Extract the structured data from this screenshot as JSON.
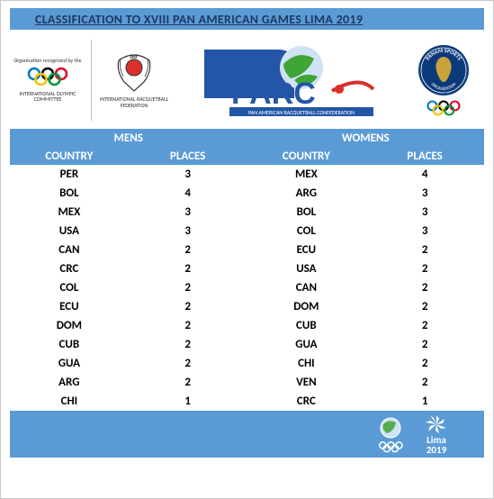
{
  "title": "CLASSIFICATION TO XVIII PAN AMERICAN GAMES LIMA 2019",
  "colors": {
    "header_bg": "#5b9bd5",
    "title_text": "#1f3864",
    "white": "#ffffff",
    "text": "#000000",
    "border": "#c8c8c8",
    "panam_blue": "#0b3a7a",
    "panam_gold": "#c9a33a",
    "parc_blue": "#2356a6",
    "parc_red": "#d9302c",
    "lima_teal": "#7fcecb"
  },
  "logos": {
    "ioc": {
      "top": "Organisation recognized by the",
      "name": "INTERNATIONAL OLYMPIC COMMITTEE"
    },
    "irf": {
      "top": "IRF",
      "name": "INTERNATIONAL RACQUETBALL FEDERATION"
    },
    "parc": {
      "main": "PARC",
      "sub": "PAN AMERICAN RACQUETBALL CONFEDERATION"
    },
    "panam": {
      "top": "PANAM SPORTS",
      "sub": "ORGANIZATION"
    }
  },
  "table": {
    "genders": [
      "MENS",
      "WOMENS"
    ],
    "headers": [
      "COUNTRY",
      "PLACES",
      "COUNTRY",
      "PLACES"
    ],
    "rows": [
      {
        "mc": "PER",
        "mp": "3",
        "wc": "MEX",
        "wp": "4"
      },
      {
        "mc": "BOL",
        "mp": "4",
        "wc": "ARG",
        "wp": "3"
      },
      {
        "mc": "MEX",
        "mp": "3",
        "wc": "BOL",
        "wp": "3"
      },
      {
        "mc": "USA",
        "mp": "3",
        "wc": "COL",
        "wp": "3"
      },
      {
        "mc": "CAN",
        "mp": "2",
        "wc": "ECU",
        "wp": "2"
      },
      {
        "mc": "CRC",
        "mp": "2",
        "wc": "USA",
        "wp": "2"
      },
      {
        "mc": "COL",
        "mp": "2",
        "wc": "CAN",
        "wp": "2"
      },
      {
        "mc": "ECU",
        "mp": "2",
        "wc": "DOM",
        "wp": "2"
      },
      {
        "mc": "DOM",
        "mp": "2",
        "wc": "CUB",
        "wp": "2"
      },
      {
        "mc": "CUB",
        "mp": "2",
        "wc": "GUA",
        "wp": "2"
      },
      {
        "mc": "GUA",
        "mp": "2",
        "wc": "CHI",
        "wp": "2"
      },
      {
        "mc": "ARG",
        "mp": "2",
        "wc": "VEN",
        "wp": "2"
      },
      {
        "mc": "CHI",
        "mp": "1",
        "wc": "CRC",
        "wp": "1"
      }
    ]
  },
  "footer": {
    "lima_top": "Lima",
    "lima_year": "2019"
  }
}
